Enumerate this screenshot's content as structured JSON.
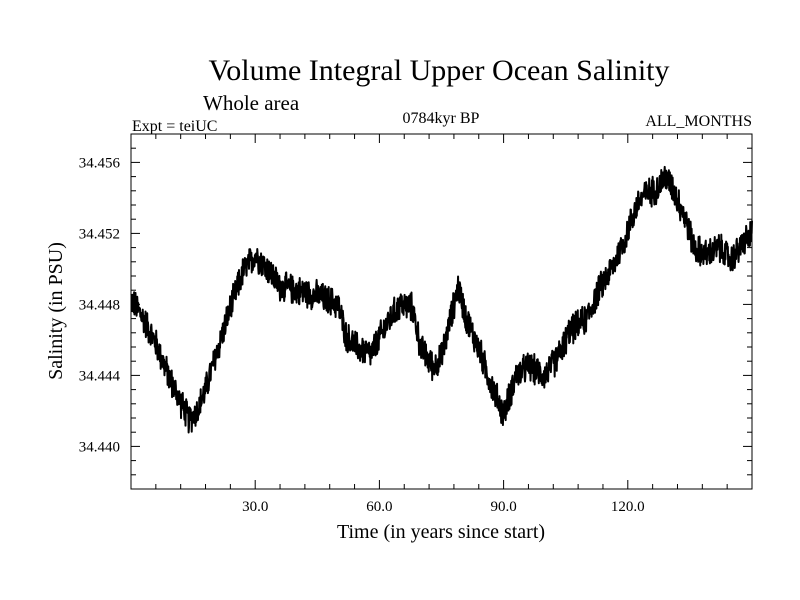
{
  "chart_data": {
    "type": "line",
    "title": "Volume Integral Upper Ocean Salinity",
    "subtitle": "Whole area",
    "left_label": "Expt = teiUC",
    "center_label": "0784kyr BP",
    "right_label": "ALL_MONTHS",
    "xlabel": "Time (in years since start)",
    "ylabel": "Salinity (in PSU)",
    "xlim": [
      0,
      150
    ],
    "ylim": [
      34.4376,
      34.4576
    ],
    "x_ticks": [
      {
        "value": 30,
        "label": "30.0"
      },
      {
        "value": 60,
        "label": "60.0"
      },
      {
        "value": 90,
        "label": "90.0"
      },
      {
        "value": 120,
        "label": "120.0"
      }
    ],
    "y_ticks": [
      {
        "value": 34.44,
        "label": "34.440"
      },
      {
        "value": 34.444,
        "label": "34.444"
      },
      {
        "value": 34.448,
        "label": "34.448"
      },
      {
        "value": 34.452,
        "label": "34.452"
      },
      {
        "value": 34.456,
        "label": "34.456"
      }
    ],
    "trend": {
      "x": [
        0,
        3,
        6,
        9,
        12,
        14,
        16,
        18,
        21,
        24,
        27,
        30,
        33,
        36,
        40,
        45,
        50,
        52,
        55,
        58,
        62,
        65,
        68,
        70,
        73,
        75,
        77,
        79,
        81,
        84,
        87,
        90,
        93,
        96,
        100,
        103,
        106,
        110,
        113,
        116,
        119,
        122,
        124,
        127,
        129,
        131,
        134,
        136,
        139,
        142,
        145,
        148,
        150
      ],
      "y": [
        34.4483,
        34.4472,
        34.4458,
        34.444,
        34.4425,
        34.4415,
        34.442,
        34.4432,
        34.4455,
        34.4478,
        34.4498,
        34.4508,
        34.45,
        34.449,
        34.4488,
        34.4485,
        34.448,
        34.4462,
        34.4455,
        34.4452,
        34.447,
        34.448,
        34.4478,
        34.4455,
        34.4445,
        34.445,
        34.447,
        34.449,
        34.4472,
        34.4455,
        34.4435,
        34.4418,
        34.444,
        34.4445,
        34.444,
        34.445,
        34.4465,
        34.4472,
        34.4488,
        34.45,
        34.4515,
        34.4535,
        34.4542,
        34.4545,
        34.4552,
        34.4545,
        34.4528,
        34.4512,
        34.4508,
        34.4512,
        34.4505,
        34.4515,
        34.452
      ]
    },
    "samples_per_year": 12,
    "noise_amplitude": 0.00095,
    "line_color": "#000000"
  }
}
